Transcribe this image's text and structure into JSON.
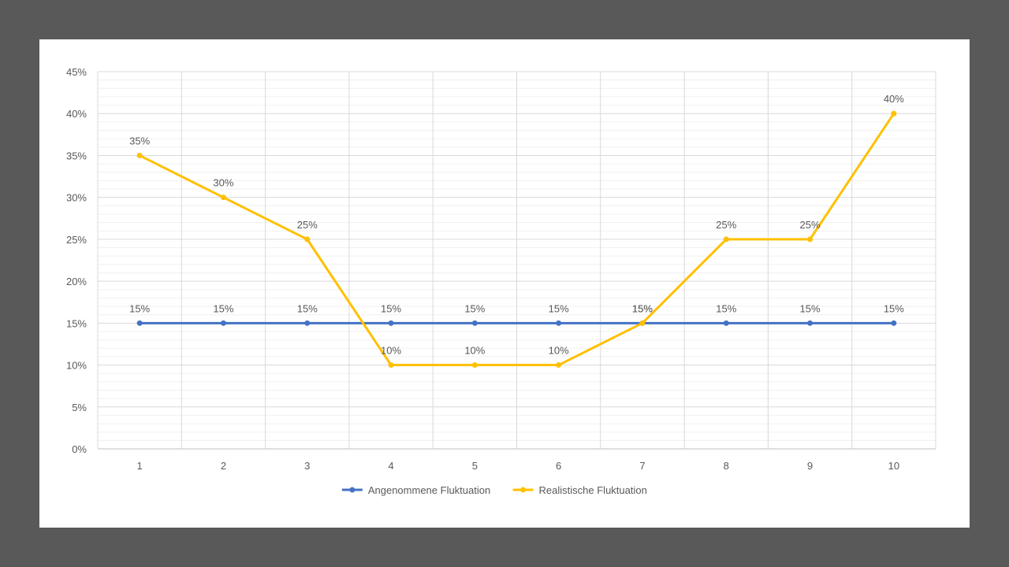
{
  "chart_data": {
    "type": "line",
    "title": "",
    "xlabel": "",
    "ylabel": "",
    "categories": [
      "1",
      "2",
      "3",
      "4",
      "5",
      "6",
      "7",
      "8",
      "9",
      "10"
    ],
    "ylim": [
      0,
      0.45
    ],
    "ytick_step": 0.05,
    "ytick_labels": [
      "0%",
      "5%",
      "10%",
      "15%",
      "20%",
      "25%",
      "30%",
      "35%",
      "40%",
      "45%"
    ],
    "grid": true,
    "legend": "bottom",
    "series": [
      {
        "name": "Angenommene Fluktuation",
        "color": "#4472C4",
        "values": [
          0.15,
          0.15,
          0.15,
          0.15,
          0.15,
          0.15,
          0.15,
          0.15,
          0.15,
          0.15
        ],
        "labels": [
          "15%",
          "15%",
          "15%",
          "15%",
          "15%",
          "15%",
          "15%",
          "15%",
          "15%",
          "15%"
        ]
      },
      {
        "name": "Realistische Fluktuation",
        "color": "#FFC000",
        "values": [
          0.35,
          0.3,
          0.25,
          0.1,
          0.1,
          0.1,
          0.15,
          0.25,
          0.25,
          0.4
        ],
        "labels": [
          "35%",
          "30%",
          "25%",
          "10%",
          "10%",
          "10%",
          "15%",
          "25%",
          "25%",
          "40%"
        ]
      }
    ]
  }
}
